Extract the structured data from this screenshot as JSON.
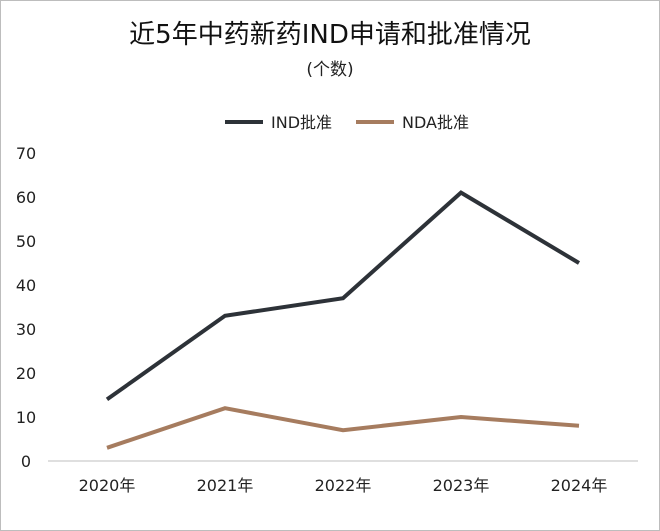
{
  "chart_data": {
    "type": "line",
    "title": "近5年中药新药IND申请和批准情况",
    "subtitle": "(个数)",
    "categories": [
      "2020年",
      "2021年",
      "2022年",
      "2023年",
      "2024年"
    ],
    "series": [
      {
        "name": "IND批准",
        "values": [
          14,
          33,
          37,
          61,
          45
        ],
        "color": "#2d3238"
      },
      {
        "name": "NDA批准",
        "values": [
          3,
          12,
          7,
          10,
          8
        ],
        "color": "#a67c5f"
      }
    ],
    "ylim": [
      0,
      70
    ],
    "yticks": [
      "0",
      "10",
      "20",
      "30",
      "40",
      "50",
      "60",
      "70"
    ],
    "xlabel": "",
    "ylabel": "",
    "legend_position": "top-center",
    "grid": false
  }
}
